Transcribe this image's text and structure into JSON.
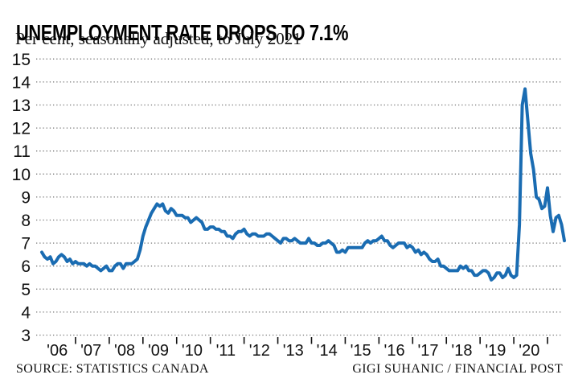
{
  "header": {
    "title": "UNEMPLOYMENT RATE DROPS TO 7.1%",
    "subtitle": "Per cent, seasonally adjusted, to July 2021"
  },
  "footer": {
    "source": "SOURCE: STATISTICS CANADA",
    "credit": "GIGI SUHANIC / FINANCIAL POST"
  },
  "chart_data": {
    "type": "line",
    "title": "UNEMPLOYMENT RATE DROPS TO 7.1%",
    "subtitle": "Per cent, seasonally adjusted, to July 2021",
    "ylabel": "Per cent",
    "ylim": [
      3,
      15
    ],
    "y_ticks": [
      3,
      4,
      5,
      6,
      7,
      8,
      9,
      10,
      11,
      12,
      13,
      14,
      15
    ],
    "x_start": "Jan 2006",
    "x_end": "Jul 2021",
    "x_labels": [
      "'06",
      "'07",
      "'08",
      "'09",
      "'10",
      "'11",
      "'12",
      "'13",
      "'14",
      "'15",
      "'16",
      "'17",
      "'18",
      "'19",
      "'20"
    ],
    "grid": "dotted-horizontal",
    "line_color": "#1a6cb2",
    "grid_color": "#777777",
    "tick_color": "#111111",
    "years_order": [
      "2006",
      "2007",
      "2008",
      "2009",
      "2010",
      "2011",
      "2012",
      "2013",
      "2014",
      "2015",
      "2016",
      "2017",
      "2018",
      "2019",
      "2020",
      "2021"
    ],
    "series": [
      {
        "name": "Unemployment rate",
        "monthly_values_by_year": {
          "2006": [
            6.6,
            6.4,
            6.3,
            6.4,
            6.1,
            6.2,
            6.4,
            6.5,
            6.4,
            6.2,
            6.3,
            6.1
          ],
          "2007": [
            6.2,
            6.1,
            6.1,
            6.1,
            6.0,
            6.1,
            6.0,
            6.0,
            5.9,
            5.8,
            5.9,
            6.0
          ],
          "2008": [
            5.8,
            5.8,
            6.0,
            6.1,
            6.1,
            5.9,
            6.1,
            6.1,
            6.1,
            6.2,
            6.3,
            6.7
          ],
          "2009": [
            7.3,
            7.7,
            8.0,
            8.3,
            8.5,
            8.7,
            8.6,
            8.7,
            8.4,
            8.3,
            8.5,
            8.4
          ],
          "2010": [
            8.2,
            8.2,
            8.2,
            8.1,
            8.1,
            7.9,
            8.0,
            8.1,
            8.0,
            7.9,
            7.6,
            7.6
          ],
          "2011": [
            7.7,
            7.7,
            7.6,
            7.6,
            7.5,
            7.5,
            7.3,
            7.3,
            7.2,
            7.4,
            7.5,
            7.5
          ],
          "2012": [
            7.6,
            7.4,
            7.3,
            7.4,
            7.4,
            7.3,
            7.3,
            7.3,
            7.4,
            7.4,
            7.3,
            7.2
          ],
          "2013": [
            7.1,
            7.0,
            7.2,
            7.2,
            7.1,
            7.1,
            7.2,
            7.1,
            7.0,
            7.0,
            7.0,
            7.2
          ],
          "2014": [
            7.0,
            7.0,
            6.9,
            6.9,
            7.0,
            7.0,
            7.1,
            7.0,
            6.9,
            6.6,
            6.6,
            6.7
          ],
          "2015": [
            6.6,
            6.8,
            6.8,
            6.8,
            6.8,
            6.8,
            6.8,
            7.0,
            7.1,
            7.0,
            7.1,
            7.1
          ],
          "2016": [
            7.2,
            7.3,
            7.1,
            7.1,
            6.9,
            6.8,
            6.9,
            7.0,
            7.0,
            7.0,
            6.8,
            6.9
          ],
          "2017": [
            6.8,
            6.6,
            6.7,
            6.5,
            6.6,
            6.5,
            6.3,
            6.2,
            6.2,
            6.3,
            6.0,
            6.0
          ],
          "2018": [
            5.9,
            5.8,
            5.8,
            5.8,
            5.8,
            6.0,
            5.9,
            6.0,
            5.8,
            5.8,
            5.6,
            5.6
          ],
          "2019": [
            5.7,
            5.8,
            5.8,
            5.7,
            5.4,
            5.5,
            5.7,
            5.7,
            5.5,
            5.6,
            5.9,
            5.6
          ],
          "2020": [
            5.5,
            5.6,
            7.8,
            13.0,
            13.7,
            12.3,
            10.9,
            10.2,
            9.0,
            8.9,
            8.5,
            8.6
          ],
          "2021": [
            9.4,
            8.2,
            7.5,
            8.1,
            8.2,
            7.8,
            7.1
          ]
        }
      }
    ]
  }
}
